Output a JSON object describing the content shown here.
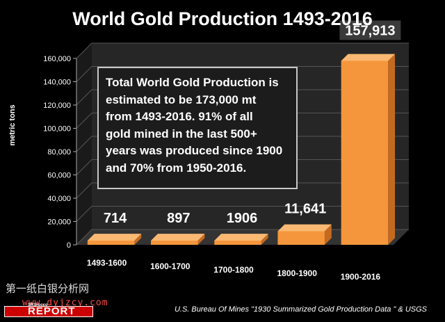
{
  "chart_data": {
    "type": "bar",
    "title": "World Gold Production 1493-2016",
    "ylabel": "metric tons",
    "xlabel": "",
    "categories": [
      "1493-1600",
      "1600-1700",
      "1700-1800",
      "1800-1900",
      "1900-2016"
    ],
    "values": [
      714,
      897,
      1906,
      11641,
      157913
    ],
    "value_labels": [
      "714",
      "897",
      "1906",
      "11,641",
      "157,913"
    ],
    "ylim": [
      0,
      160000
    ],
    "yticks": [
      "0",
      "20,000",
      "40,000",
      "60,000",
      "80,000",
      "100,000",
      "120,000",
      "140,000",
      "160,000"
    ],
    "grid": true,
    "style": "3d-bar",
    "colors": {
      "bar": "#F5963C",
      "bar_top": "#FAB872",
      "bar_side": "#C46A1E",
      "background": "#000000",
      "wall": "#262626"
    },
    "annotation": [
      "Total World Gold Production is",
      "estimated to be 173,000 mt",
      "from 1493-2016.  91% of all",
      "gold mined in the last 500+",
      "years was produced since 1900",
      "and 70% from 1950-2016."
    ]
  },
  "watermark": {
    "line1": "第一纸白银分析网",
    "line2": "www.dyjzcy.com"
  },
  "logo": {
    "text": "REPORT",
    "sub": "SRSrocco"
  },
  "source": "U.S. Bureau Of Mines \"1930 Summarized Gold Production Data \"  & USGS"
}
